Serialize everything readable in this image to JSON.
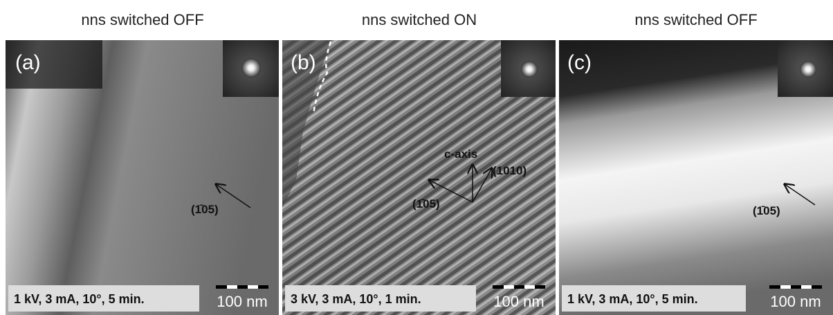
{
  "panels": [
    {
      "title": "nns switched OFF",
      "label": "(a)",
      "conditions": "1 kV, 3 mA, 10°, 5 min.",
      "scale_label": "100 nm",
      "annotations": [
        "(1̄05)"
      ]
    },
    {
      "title": "nns switched ON",
      "label": "(b)",
      "conditions": "3 kV, 3 mA, 10°, 1 min.",
      "scale_label": "100 nm",
      "annotations": [
        "c-axis",
        "(1010)",
        "(1̄05)"
      ]
    },
    {
      "title": "nns switched OFF",
      "label": "(c)",
      "conditions": "1 kV, 3 mA, 10°, 5 min.",
      "scale_label": "100 nm",
      "annotations": [
        "(1̄05)"
      ]
    }
  ]
}
